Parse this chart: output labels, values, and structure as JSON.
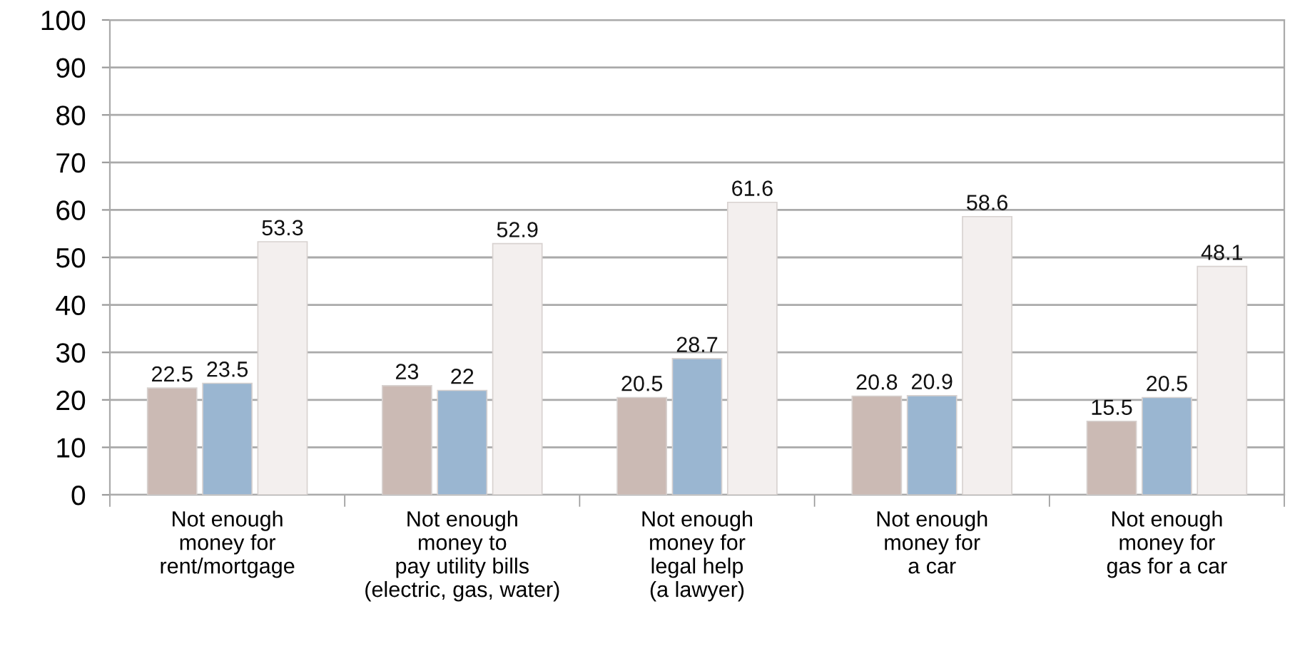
{
  "chart_data": {
    "type": "bar",
    "categories": [
      "Not enough\nmoney for\nrent/mortgage",
      "Not enough\nmoney to\npay utility bills\n(electric, gas, water)",
      "Not enough\nmoney for\nlegal help\n(a lawyer)",
      "Not enough\nmoney for\na car",
      "Not enough\nmoney for\ngas for a car"
    ],
    "series": [
      {
        "color": "#cbbab4",
        "values": [
          22.5,
          23,
          20.5,
          20.8,
          15.5
        ]
      },
      {
        "color": "#9ab6d1",
        "values": [
          23.5,
          22,
          28.7,
          20.9,
          20.5
        ]
      },
      {
        "color": "#f3efee",
        "values": [
          53.3,
          52.9,
          61.6,
          58.6,
          48.1
        ]
      }
    ],
    "ylim": [
      0,
      100
    ],
    "yticks": [
      0,
      10,
      20,
      30,
      40,
      50,
      60,
      70,
      80,
      90,
      100
    ],
    "grid": "y",
    "data_labels": true
  }
}
